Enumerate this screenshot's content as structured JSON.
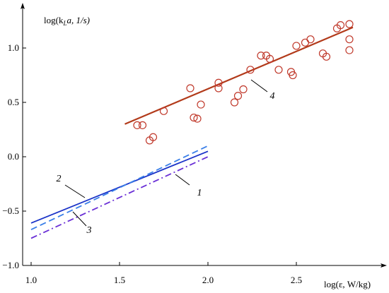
{
  "chart_data": {
    "type": "scatter",
    "title": "",
    "ylabel_parts": [
      "log(k",
      "L",
      "a, 1/s)"
    ],
    "xlabel": "log(ε, W/kg)",
    "xlim": [
      0.95,
      2.98
    ],
    "ylim": [
      -1.0,
      1.33
    ],
    "x_ticks": [
      1.0,
      1.5,
      2.0,
      2.5
    ],
    "x_tick_labels": [
      "1.0",
      "1.5",
      "2.0",
      "2.5"
    ],
    "y_ticks": [
      -1.0,
      -0.5,
      0.0,
      0.5,
      1.0
    ],
    "y_tick_labels": [
      "−1.0",
      "−0.5",
      "0.0",
      "0.5",
      "1.0"
    ],
    "grid": false,
    "lines": [
      {
        "label": "1",
        "color": "#6a2fd6",
        "style": "dashdot",
        "x": [
          1.0,
          2.0
        ],
        "y": [
          -0.75,
          0.0
        ]
      },
      {
        "label": "2",
        "color": "#1a33c8",
        "style": "solid",
        "x": [
          1.0,
          2.0
        ],
        "y": [
          -0.61,
          0.05
        ]
      },
      {
        "label": "3",
        "color": "#3a7fe8",
        "style": "dashed",
        "x": [
          1.0,
          2.0
        ],
        "y": [
          -0.67,
          0.1
        ]
      },
      {
        "label": "4",
        "color": "#b23a1a",
        "style": "solid",
        "x": [
          1.53,
          2.82
        ],
        "y": [
          0.3,
          1.19
        ]
      }
    ],
    "series": [
      {
        "color": "#c0392b",
        "points": [
          {
            "x": 1.6,
            "y": 0.29
          },
          {
            "x": 1.63,
            "y": 0.29
          },
          {
            "x": 1.67,
            "y": 0.15
          },
          {
            "x": 1.69,
            "y": 0.18
          },
          {
            "x": 1.75,
            "y": 0.42
          },
          {
            "x": 1.9,
            "y": 0.63
          },
          {
            "x": 1.92,
            "y": 0.36
          },
          {
            "x": 1.94,
            "y": 0.35
          },
          {
            "x": 1.96,
            "y": 0.48
          },
          {
            "x": 2.06,
            "y": 0.68
          },
          {
            "x": 2.06,
            "y": 0.63
          },
          {
            "x": 2.15,
            "y": 0.5
          },
          {
            "x": 2.17,
            "y": 0.56
          },
          {
            "x": 2.2,
            "y": 0.62
          },
          {
            "x": 2.24,
            "y": 0.8
          },
          {
            "x": 2.3,
            "y": 0.93
          },
          {
            "x": 2.33,
            "y": 0.93
          },
          {
            "x": 2.35,
            "y": 0.9
          },
          {
            "x": 2.4,
            "y": 0.8
          },
          {
            "x": 2.47,
            "y": 0.78
          },
          {
            "x": 2.48,
            "y": 0.75
          },
          {
            "x": 2.5,
            "y": 1.02
          },
          {
            "x": 2.55,
            "y": 1.05
          },
          {
            "x": 2.58,
            "y": 1.08
          },
          {
            "x": 2.65,
            "y": 0.95
          },
          {
            "x": 2.67,
            "y": 0.92
          },
          {
            "x": 2.73,
            "y": 1.18
          },
          {
            "x": 2.75,
            "y": 1.21
          },
          {
            "x": 2.8,
            "y": 1.22
          },
          {
            "x": 2.8,
            "y": 1.08
          },
          {
            "x": 2.8,
            "y": 0.98
          }
        ]
      }
    ]
  }
}
